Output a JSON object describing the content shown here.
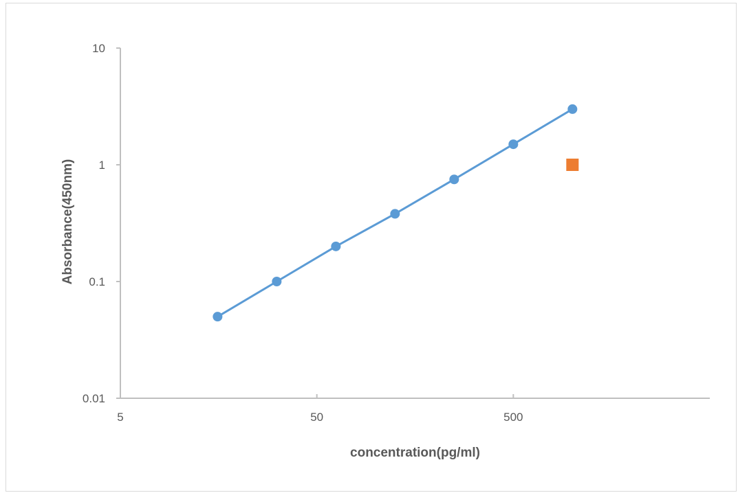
{
  "chart_data": {
    "type": "scatter",
    "title": "",
    "xlabel": "concentration(pg/ml)",
    "ylabel": "Absorbance(450nm)",
    "x_scale": "log",
    "y_scale": "log",
    "xlim": [
      5,
      5000
    ],
    "ylim": [
      0.01,
      10
    ],
    "x_ticks": [
      5,
      50,
      500
    ],
    "y_ticks": [
      0.01,
      0.1,
      1,
      10
    ],
    "grid": false,
    "legend": "none",
    "series": [
      {
        "mode": "line+markers",
        "marker": "circle",
        "color": "#5b9bd5",
        "x": [
          15.625,
          31.25,
          62.5,
          125,
          250,
          500,
          1000
        ],
        "y": [
          0.05,
          0.1,
          0.2,
          0.38,
          0.75,
          1.5,
          3
        ]
      },
      {
        "mode": "markers",
        "marker": "square",
        "color": "#ed7d31",
        "x": [
          1000
        ],
        "y": [
          1
        ]
      }
    ]
  }
}
